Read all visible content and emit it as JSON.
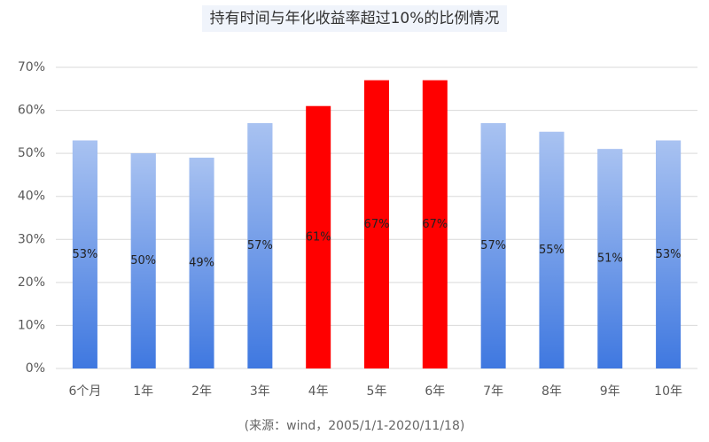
{
  "chart_data": {
    "type": "bar",
    "title": "持有时间与年化收益率超过10%的比例情况",
    "source": "(来源：wind，2005/1/1-2020/11/18)",
    "categories": [
      "6个月",
      "1年",
      "2年",
      "3年",
      "4年",
      "5年",
      "6年",
      "7年",
      "8年",
      "9年",
      "10年"
    ],
    "values": [
      53,
      50,
      49,
      57,
      61,
      67,
      67,
      57,
      55,
      51,
      53
    ],
    "value_labels": [
      "53%",
      "50%",
      "49%",
      "57%",
      "61%",
      "67%",
      "67%",
      "57%",
      "55%",
      "51%",
      "53%"
    ],
    "colors": [
      "#3f78e0",
      "#3f78e0",
      "#3f78e0",
      "#3f78e0",
      "#ff0000",
      "#ff0000",
      "#ff0000",
      "#3f78e0",
      "#3f78e0",
      "#3f78e0",
      "#3f78e0"
    ],
    "ylim": [
      0,
      70
    ],
    "yticks": [
      {
        "value": 0,
        "label": "0%"
      },
      {
        "value": 10,
        "label": "10%"
      },
      {
        "value": 20,
        "label": "20%"
      },
      {
        "value": 30,
        "label": "30%"
      },
      {
        "value": 40,
        "label": "40%"
      },
      {
        "value": 50,
        "label": "50%"
      },
      {
        "value": 60,
        "label": "60%"
      },
      {
        "value": 70,
        "label": "70%"
      }
    ],
    "grid": true
  }
}
